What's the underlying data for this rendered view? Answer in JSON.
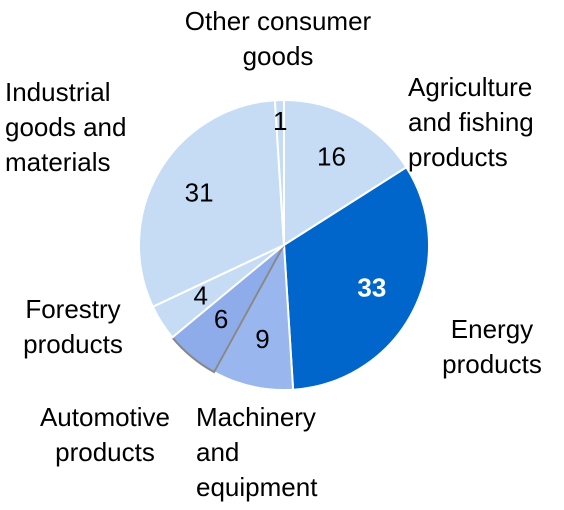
{
  "chart_data": {
    "type": "pie",
    "categories": [
      "Agriculture and fishing products",
      "Energy products",
      "Machinery and equipment",
      "Automotive products",
      "Forestry products",
      "Industrial goods and materials",
      "Other consumer goods"
    ],
    "values": [
      16,
      33,
      9,
      6,
      4,
      31,
      1
    ],
    "colors": [
      "#c6dcf5",
      "#0066cc",
      "#99b6ee",
      "#8eacea",
      "#c6dcf5",
      "#c6dcf5",
      "#c6dcf5"
    ],
    "label_colors": [
      "#000000",
      "#ffffff",
      "#000000",
      "#000000",
      "#000000",
      "#000000",
      "#000000"
    ]
  }
}
